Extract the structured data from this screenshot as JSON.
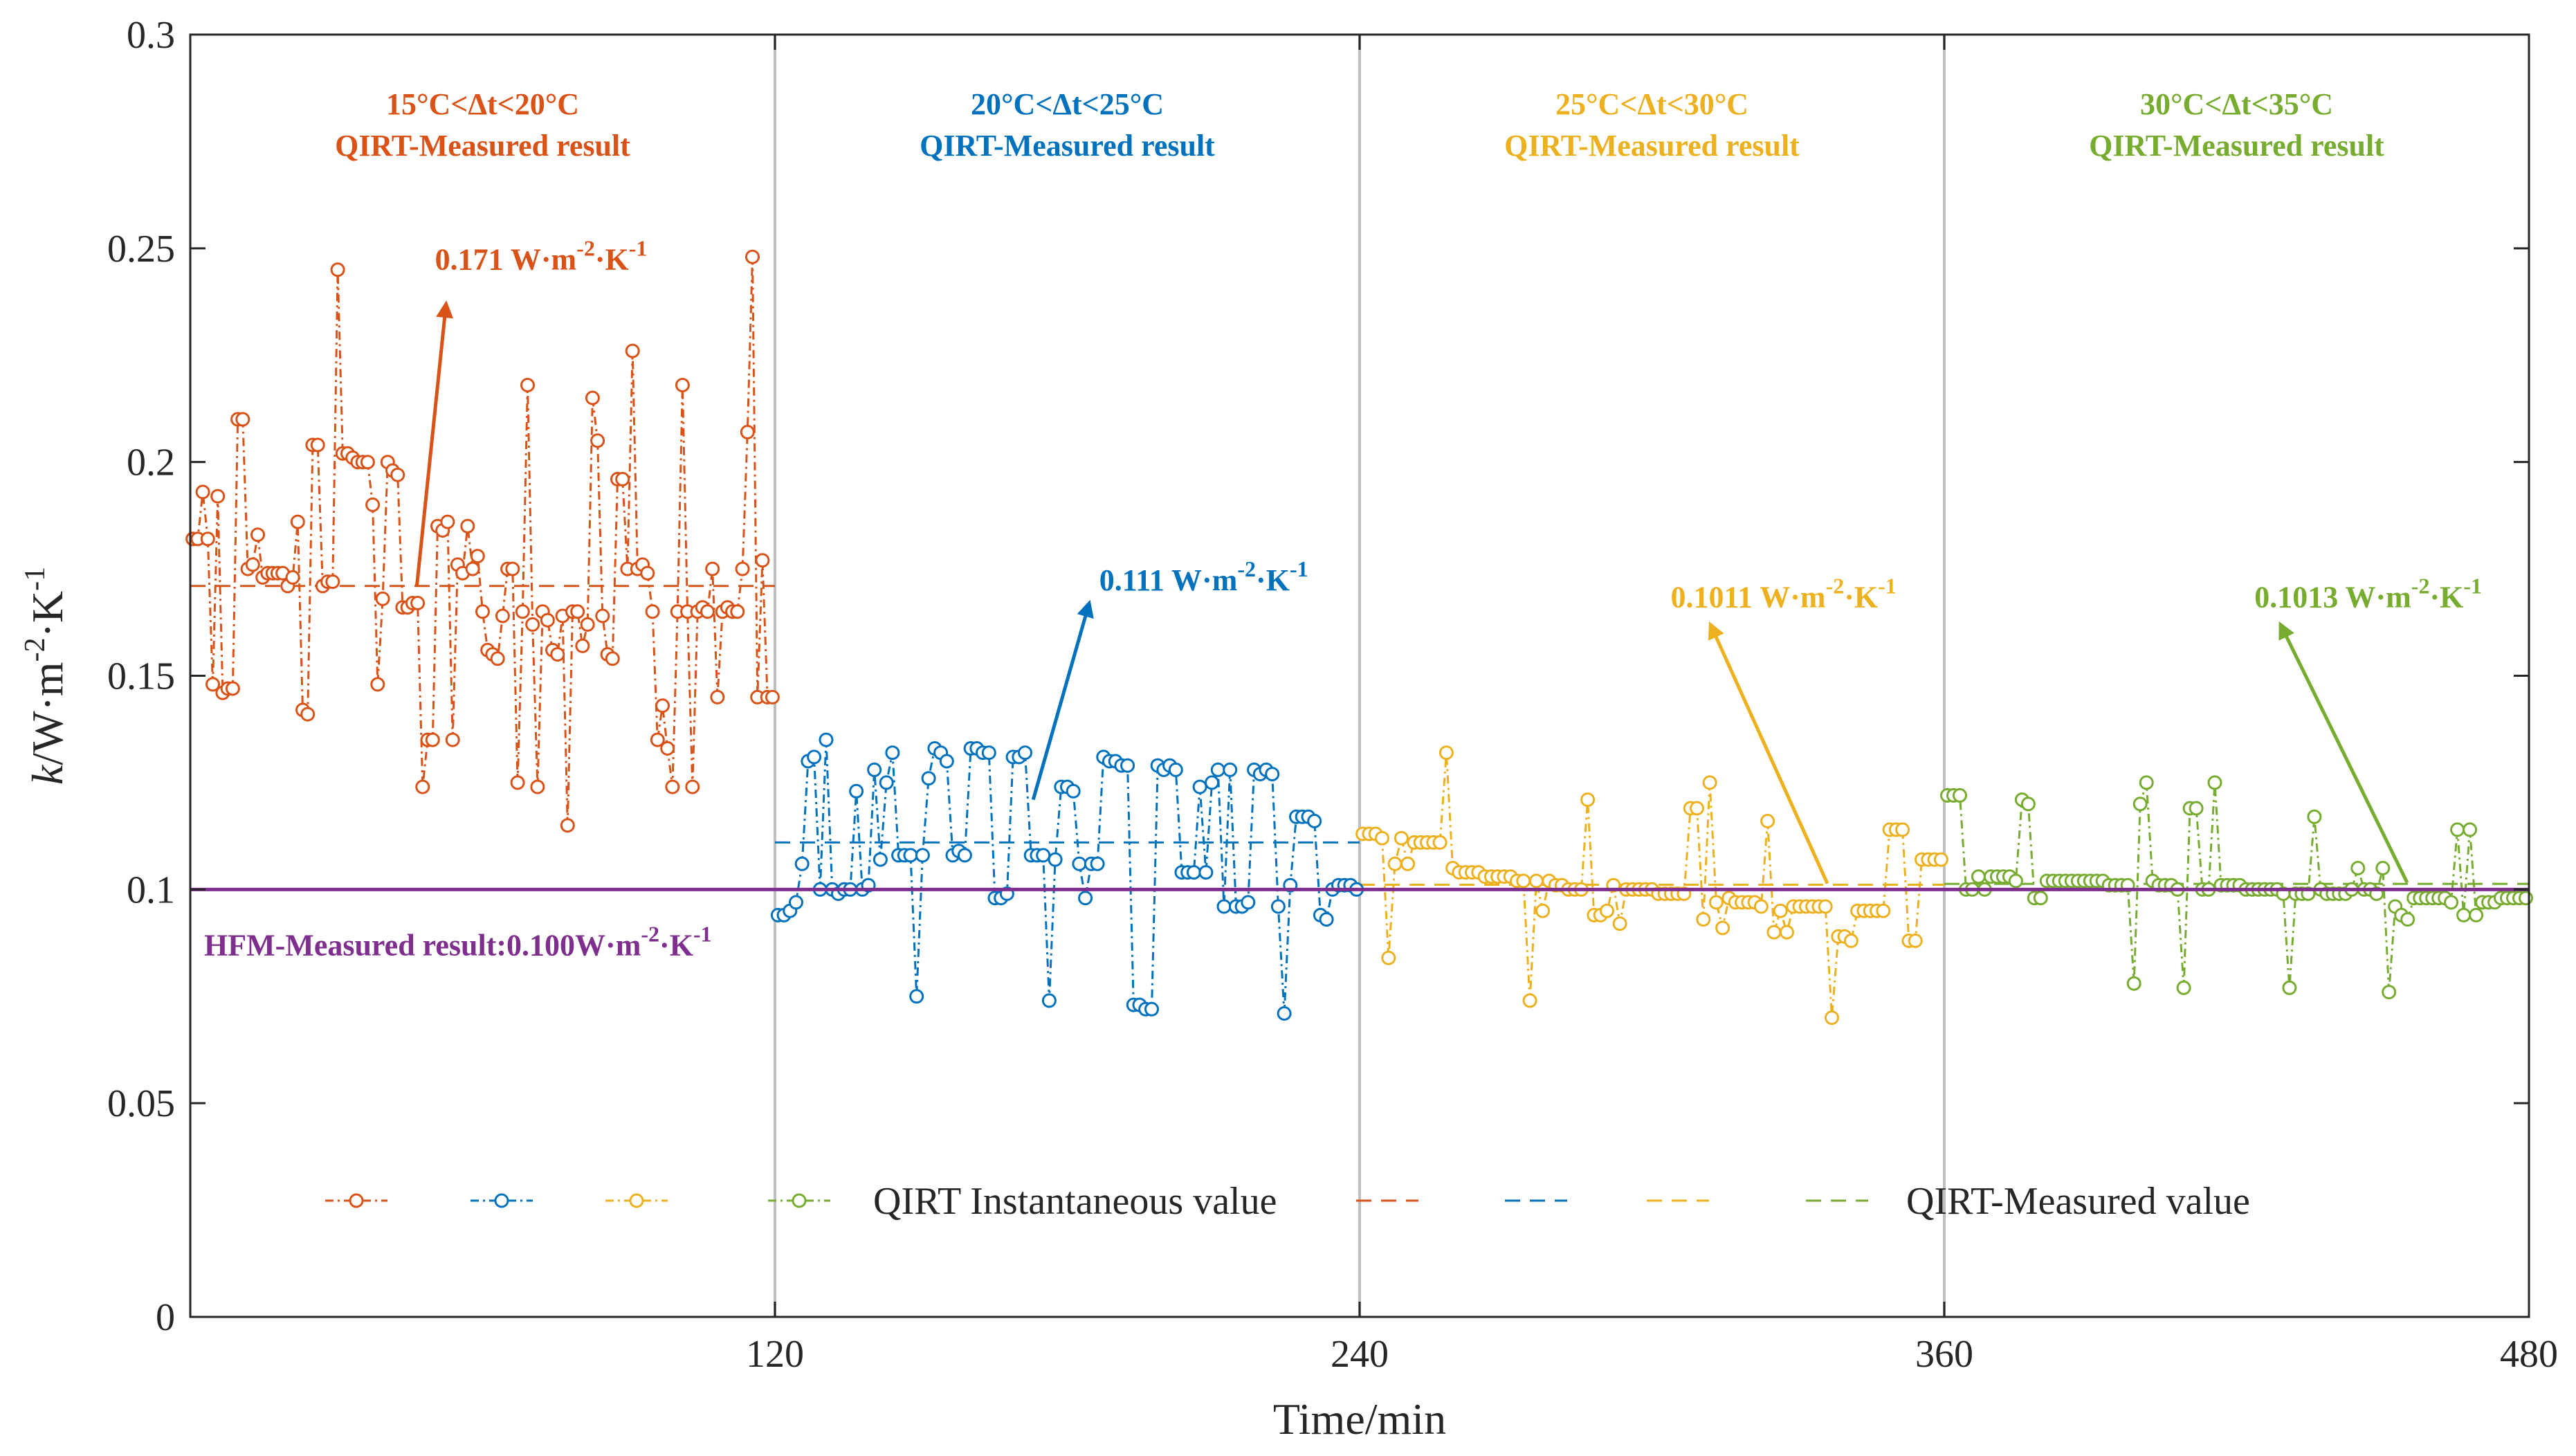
{
  "chart_data": {
    "type": "line",
    "xlabel": "Time/min",
    "ylabel_main": "k",
    "ylabel_unit": "/W·m",
    "ylabel_sup1": "-2",
    "ylabel_mid": "·K",
    "ylabel_sup2": "-1",
    "xlim": [
      0,
      480
    ],
    "ylim": [
      0,
      0.3
    ],
    "xticks": [
      120,
      240,
      360,
      480
    ],
    "xtick_labels": [
      "120",
      "240",
      "360",
      "480"
    ],
    "yticks": [
      0,
      0.05,
      0.1,
      0.15,
      0.2,
      0.25,
      0.3
    ],
    "ytick_labels": [
      "0",
      "0.05",
      "0.1",
      "0.15",
      "0.2",
      "0.25",
      "0.3"
    ],
    "dividers": [
      120,
      240,
      360
    ],
    "colors": {
      "s1": "#D95319",
      "s2": "#0072BD",
      "s3": "#EDB120",
      "s4": "#77AC30",
      "hfm": "#7E2F8E",
      "divider": "#BFBFBF",
      "axis": "#262626"
    },
    "regions": [
      {
        "range_label": "15°C<Δt<20°C",
        "result_label": "QIRT-Measured result",
        "color": "#D95319",
        "x_center": 60
      },
      {
        "range_label": "20°C<Δt<25°C",
        "result_label": "QIRT-Measured result",
        "color": "#0072BD",
        "x_center": 180
      },
      {
        "range_label": "25°C<Δt<30°C",
        "result_label": "QIRT-Measured result",
        "color": "#EDB120",
        "x_center": 300
      },
      {
        "range_label": "30°C<Δt<35°C",
        "result_label": "QIRT-Measured result",
        "color": "#77AC30",
        "x_center": 420
      }
    ],
    "annotations": [
      {
        "value": "0.171",
        "unit": " W·m",
        "sup1": "-2",
        "mid": "·K",
        "sup2": "-1",
        "color": "#D95319",
        "arrow_from": [
          46.5,
          0.171
        ],
        "arrow_to": [
          52.5,
          0.237
        ],
        "text_at": [
          72,
          0.245
        ]
      },
      {
        "value": "0.111",
        "unit": " W·m",
        "sup1": "-2",
        "mid": "·K",
        "sup2": "-1",
        "color": "#0072BD",
        "arrow_from": [
          173,
          0.121
        ],
        "arrow_to": [
          184.5,
          0.167
        ],
        "text_at": [
          208,
          0.17
        ]
      },
      {
        "value": "0.1011",
        "unit": " W·m",
        "sup1": "-2",
        "mid": "·K",
        "sup2": "-1",
        "color": "#EDB120",
        "arrow_from": [
          336,
          0.1014
        ],
        "arrow_to": [
          312,
          0.162
        ],
        "text_at": [
          327,
          0.166
        ]
      },
      {
        "value": "0.1013",
        "unit": " W·m",
        "sup1": "-2",
        "mid": "·K",
        "sup2": "-1",
        "color": "#77AC30",
        "arrow_from": [
          455,
          0.1016
        ],
        "arrow_to": [
          429,
          0.162
        ],
        "text_at": [
          447,
          0.166
        ]
      }
    ],
    "hfm": {
      "value": 0.1,
      "label_prefix": "HFM-Measured result:0.100W·m",
      "sup1": "-2",
      "mid": "·K",
      "sup2": "-1"
    },
    "legend": {
      "instantaneous_label": "QIRT Instantaneous value",
      "measured_label": "QIRT-Measured value"
    },
    "series": [
      {
        "name": "15°C<Δt<20°C instantaneous",
        "color": "#D95319",
        "mean": 0.171,
        "x_start": 0,
        "x_end": 120,
        "values": [
          0.182,
          0.182,
          0.193,
          0.182,
          0.148,
          0.192,
          0.146,
          0.147,
          0.147,
          0.21,
          0.21,
          0.175,
          0.176,
          0.183,
          0.173,
          0.174,
          0.174,
          0.174,
          0.174,
          0.171,
          0.173,
          0.186,
          0.142,
          0.141,
          0.204,
          0.204,
          0.171,
          0.172,
          0.172,
          0.245,
          0.202,
          0.202,
          0.201,
          0.2,
          0.2,
          0.2,
          0.19,
          0.148,
          0.168,
          0.2,
          0.198,
          0.197,
          0.166,
          0.166,
          0.167,
          0.167,
          0.124,
          0.135,
          0.135,
          0.185,
          0.184,
          0.186,
          0.135,
          0.176,
          0.174,
          0.185,
          0.175,
          0.178,
          0.165,
          0.156,
          0.155,
          0.154,
          0.164,
          0.175,
          0.175,
          0.125,
          0.165,
          0.218,
          0.162,
          0.124,
          0.165,
          0.163,
          0.156,
          0.155,
          0.164,
          0.115,
          0.165,
          0.165,
          0.157,
          0.162,
          0.215,
          0.205,
          0.164,
          0.155,
          0.154,
          0.196,
          0.196,
          0.175,
          0.226,
          0.175,
          0.176,
          0.174,
          0.165,
          0.135,
          0.143,
          0.133,
          0.124,
          0.165,
          0.218,
          0.165,
          0.124,
          0.165,
          0.166,
          0.165,
          0.175,
          0.145,
          0.165,
          0.166,
          0.165,
          0.165,
          0.175,
          0.207,
          0.248,
          0.145,
          0.177,
          0.145,
          0.145
        ]
      },
      {
        "name": "20°C<Δt<25°C instantaneous",
        "color": "#0072BD",
        "mean": 0.111,
        "x_start": 120,
        "x_end": 240,
        "values": [
          0.094,
          0.094,
          0.095,
          0.097,
          0.106,
          0.13,
          0.131,
          0.1,
          0.135,
          0.1,
          0.099,
          0.1,
          0.1,
          0.123,
          0.1,
          0.101,
          0.128,
          0.107,
          0.125,
          0.132,
          0.108,
          0.108,
          0.108,
          0.075,
          0.108,
          0.126,
          0.133,
          0.132,
          0.13,
          0.108,
          0.109,
          0.108,
          0.133,
          0.133,
          0.132,
          0.132,
          0.098,
          0.098,
          0.099,
          0.131,
          0.131,
          0.132,
          0.108,
          0.108,
          0.108,
          0.074,
          0.107,
          0.124,
          0.124,
          0.123,
          0.106,
          0.098,
          0.106,
          0.106,
          0.131,
          0.13,
          0.13,
          0.129,
          0.129,
          0.073,
          0.073,
          0.072,
          0.072,
          0.129,
          0.128,
          0.129,
          0.128,
          0.104,
          0.104,
          0.104,
          0.124,
          0.104,
          0.125,
          0.128,
          0.096,
          0.128,
          0.096,
          0.096,
          0.097,
          0.128,
          0.127,
          0.128,
          0.127,
          0.096,
          0.071,
          0.101,
          0.117,
          0.117,
          0.117,
          0.116,
          0.094,
          0.093,
          0.1,
          0.101,
          0.101,
          0.101,
          0.1
        ]
      },
      {
        "name": "25°C<Δt<30°C instantaneous",
        "color": "#EDB120",
        "mean": 0.1011,
        "x_start": 240,
        "x_end": 360,
        "values": [
          0.113,
          0.113,
          0.113,
          0.112,
          0.084,
          0.106,
          0.112,
          0.106,
          0.111,
          0.111,
          0.111,
          0.111,
          0.111,
          0.132,
          0.105,
          0.104,
          0.104,
          0.104,
          0.104,
          0.103,
          0.103,
          0.103,
          0.103,
          0.103,
          0.102,
          0.102,
          0.074,
          0.102,
          0.095,
          0.102,
          0.101,
          0.101,
          0.1,
          0.1,
          0.1,
          0.121,
          0.094,
          0.094,
          0.095,
          0.101,
          0.092,
          0.1,
          0.1,
          0.1,
          0.1,
          0.1,
          0.099,
          0.099,
          0.099,
          0.099,
          0.099,
          0.119,
          0.119,
          0.093,
          0.125,
          0.097,
          0.091,
          0.098,
          0.097,
          0.097,
          0.097,
          0.097,
          0.096,
          0.116,
          0.09,
          0.095,
          0.09,
          0.096,
          0.096,
          0.096,
          0.096,
          0.096,
          0.096,
          0.07,
          0.089,
          0.089,
          0.088,
          0.095,
          0.095,
          0.095,
          0.095,
          0.095,
          0.114,
          0.114,
          0.114,
          0.088,
          0.088,
          0.107,
          0.107,
          0.107,
          0.107
        ]
      },
      {
        "name": "30°C<Δt<35°C instantaneous",
        "color": "#77AC30",
        "mean": 0.1013,
        "x_start": 360,
        "x_end": 480,
        "values": [
          0.122,
          0.122,
          0.122,
          0.1,
          0.1,
          0.103,
          0.1,
          0.103,
          0.103,
          0.103,
          0.103,
          0.102,
          0.121,
          0.12,
          0.098,
          0.098,
          0.102,
          0.102,
          0.102,
          0.102,
          0.102,
          0.102,
          0.102,
          0.102,
          0.102,
          0.102,
          0.101,
          0.101,
          0.101,
          0.101,
          0.078,
          0.12,
          0.125,
          0.102,
          0.101,
          0.101,
          0.101,
          0.1,
          0.077,
          0.119,
          0.119,
          0.1,
          0.1,
          0.125,
          0.101,
          0.101,
          0.101,
          0.101,
          0.1,
          0.1,
          0.1,
          0.1,
          0.1,
          0.1,
          0.099,
          0.077,
          0.099,
          0.099,
          0.099,
          0.117,
          0.1,
          0.099,
          0.099,
          0.099,
          0.099,
          0.1,
          0.105,
          0.1,
          0.1,
          0.099,
          0.105,
          0.076,
          0.096,
          0.094,
          0.093,
          0.098,
          0.098,
          0.098,
          0.098,
          0.098,
          0.098,
          0.097,
          0.114,
          0.094,
          0.114,
          0.094,
          0.097,
          0.097,
          0.097,
          0.098,
          0.098,
          0.098,
          0.098,
          0.098
        ]
      }
    ]
  }
}
